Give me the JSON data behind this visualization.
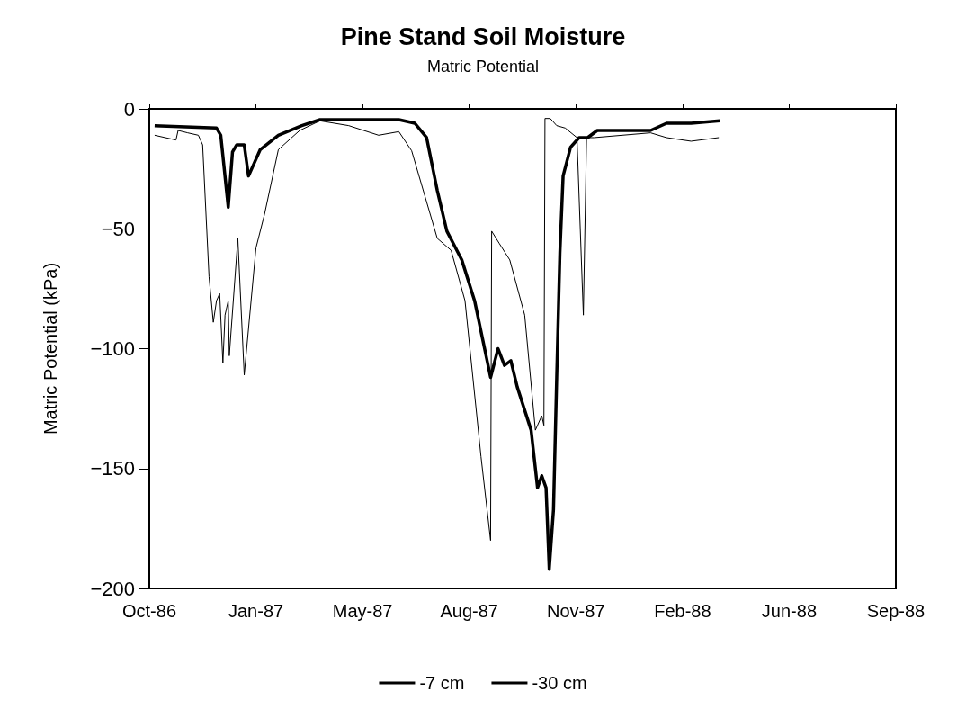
{
  "chart_data": {
    "type": "line",
    "title": "Pine Stand Soil Moisture",
    "subtitle": "Matric Potential",
    "ylabel": "Matric Potential (kPa)",
    "xlim": [
      "1986-10-15",
      "1988-09-14"
    ],
    "xticks": [
      {
        "value": "1986-10-15",
        "label": "Oct-86"
      },
      {
        "value": "1987-01-23",
        "label": "Jan-87"
      },
      {
        "value": "1987-05-03",
        "label": "May-87"
      },
      {
        "value": "1987-08-11",
        "label": "Aug-87"
      },
      {
        "value": "1987-11-19",
        "label": "Nov-87"
      },
      {
        "value": "1988-02-27",
        "label": "Feb-88"
      },
      {
        "value": "1988-06-06",
        "label": "Jun-88"
      },
      {
        "value": "1988-09-14",
        "label": "Sep-88"
      }
    ],
    "ylim": [
      -200,
      0
    ],
    "yticks": [
      -200,
      -150,
      -100,
      -50,
      0
    ],
    "grid": false,
    "legend": "bottom",
    "marker": "none",
    "line_style": "solid",
    "series": [
      {
        "name": "-7 cm",
        "color": "#000000",
        "x": [
          "1986-10-20",
          "1986-11-09",
          "1986-11-11",
          "1986-11-20",
          "1986-11-30",
          "1986-12-04",
          "1986-12-10",
          "1986-12-14",
          "1986-12-17",
          "1986-12-20",
          "1986-12-23",
          "1986-12-25",
          "1986-12-28",
          "1986-12-29",
          "1987-01-06",
          "1987-01-12",
          "1987-01-23",
          "1987-01-31",
          "1987-02-13",
          "1987-03-05",
          "1987-03-24",
          "1987-04-20",
          "1987-05-18",
          "1987-06-06",
          "1987-06-18",
          "1987-07-12",
          "1987-07-25",
          "1987-08-07",
          "1987-08-22",
          "1987-08-31",
          "1987-09-01",
          "1987-09-08",
          "1987-09-18",
          "1987-10-02",
          "1987-10-12",
          "1987-10-18",
          "1987-10-20",
          "1987-10-21",
          "1987-10-26",
          "1987-11-01",
          "1987-11-09",
          "1987-11-20",
          "1987-11-26",
          "1987-11-29",
          "1987-12-06",
          "1988-01-28",
          "1988-02-12",
          "1988-03-06",
          "1988-04-01"
        ],
        "values": [
          -11,
          -13,
          -9,
          -10,
          -11,
          -15,
          -70,
          -89,
          -80,
          -77,
          -106,
          -86,
          -80,
          -103,
          -54,
          -111,
          -58,
          -44,
          -17,
          -9,
          -5,
          -7,
          -11,
          -9.5,
          -17.5,
          -54,
          -59,
          -80,
          -145,
          -180,
          -51,
          -56,
          -63,
          -86,
          -134,
          -128,
          -132,
          -4,
          -4,
          -7,
          -8,
          -12,
          -86,
          -12,
          -12,
          -10,
          -12,
          -13.5,
          -12
        ]
      },
      {
        "name": "-30 cm",
        "color": "#000000",
        "x": [
          "1986-10-20",
          "1986-12-17",
          "1986-12-21",
          "1986-12-28",
          "1987-01-01",
          "1987-01-05",
          "1987-01-12",
          "1987-01-16",
          "1987-01-27",
          "1987-02-13",
          "1987-03-07",
          "1987-03-24",
          "1987-06-06",
          "1987-06-21",
          "1987-07-02",
          "1987-07-12",
          "1987-07-21",
          "1987-08-04",
          "1987-08-16",
          "1987-08-31",
          "1987-09-07",
          "1987-09-13",
          "1987-09-19",
          "1987-09-25",
          "1987-10-08",
          "1987-10-14",
          "1987-10-18",
          "1987-10-22",
          "1987-10-25",
          "1987-10-29",
          "1987-11-01",
          "1987-11-04",
          "1987-11-07",
          "1987-11-14",
          "1987-11-22",
          "1987-11-30",
          "1987-12-09",
          "1988-01-28",
          "1988-02-12",
          "1988-03-06",
          "1988-04-02"
        ],
        "values": [
          -7,
          -8,
          -11,
          -41,
          -18,
          -15,
          -15,
          -28,
          -17,
          -11,
          -7,
          -4.5,
          -4.5,
          -6,
          -12,
          -34,
          -51,
          -63,
          -80,
          -112,
          -100,
          -107,
          -105,
          -116,
          -134,
          -158,
          -153,
          -158,
          -192,
          -167,
          -112,
          -60,
          -28,
          -16,
          -12,
          -12,
          -9,
          -9,
          -6,
          -6,
          -5
        ]
      }
    ]
  }
}
